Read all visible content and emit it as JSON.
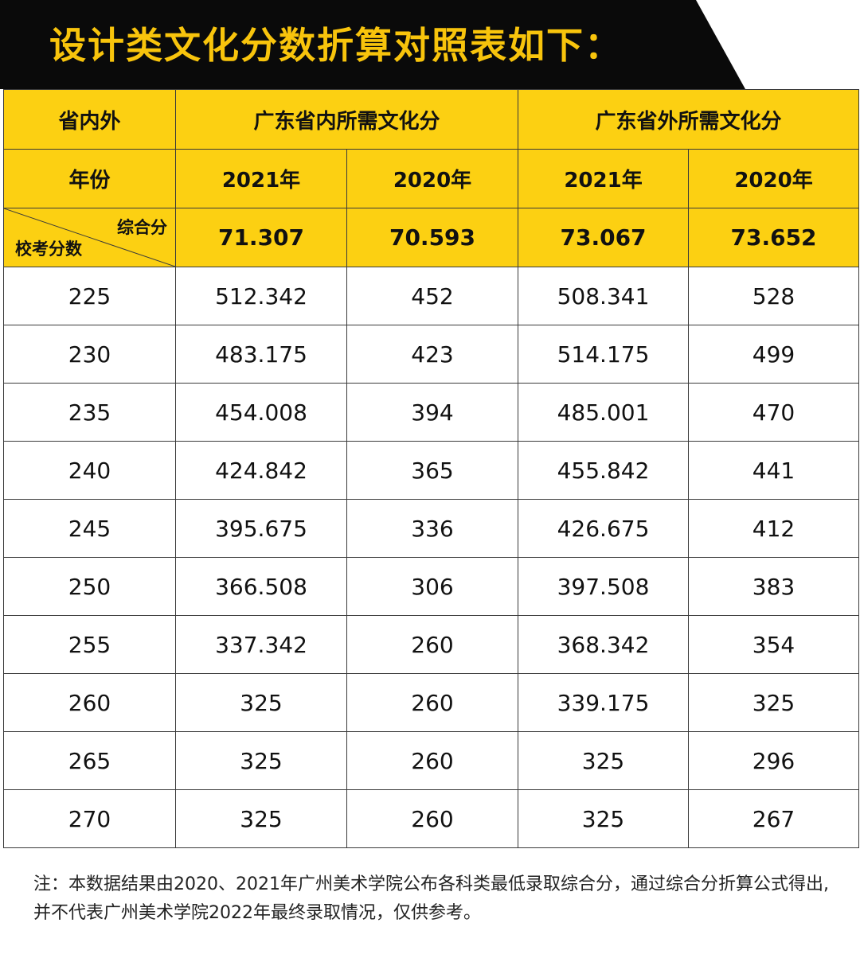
{
  "title": "设计类文化分数折算对照表如下：",
  "colors": {
    "banner": "#0a0a0a",
    "title_text": "#f8c40c",
    "header_fill": "#fcd012",
    "border": "#3a3a3a"
  },
  "header": {
    "region_label": "省内外",
    "inside_label": "广东省内所需文化分",
    "outside_label": "广东省外所需文化分",
    "year_label": "年份",
    "years": [
      "2021年",
      "2020年",
      "2021年",
      "2020年"
    ],
    "diag_top": "综合分",
    "diag_bottom": "校考分数",
    "composite": [
      "71.307",
      "70.593",
      "73.067",
      "73.652"
    ]
  },
  "rows": [
    [
      "225",
      "512.342",
      "452",
      "508.341",
      "528"
    ],
    [
      "230",
      "483.175",
      "423",
      "514.175",
      "499"
    ],
    [
      "235",
      "454.008",
      "394",
      "485.001",
      "470"
    ],
    [
      "240",
      "424.842",
      "365",
      "455.842",
      "441"
    ],
    [
      "245",
      "395.675",
      "336",
      "426.675",
      "412"
    ],
    [
      "250",
      "366.508",
      "306",
      "397.508",
      "383"
    ],
    [
      "255",
      "337.342",
      "260",
      "368.342",
      "354"
    ],
    [
      "260",
      "325",
      "260",
      "339.175",
      "325"
    ],
    [
      "265",
      "325",
      "260",
      "325",
      "296"
    ],
    [
      "270",
      "325",
      "260",
      "325",
      "267"
    ]
  ],
  "note": "注：本数据结果由2020、2021年广州美术学院公布各科类最低录取综合分，通过综合分折算公式得出,并不代表广州美术学院2022年最终录取情况，仅供参考。"
}
